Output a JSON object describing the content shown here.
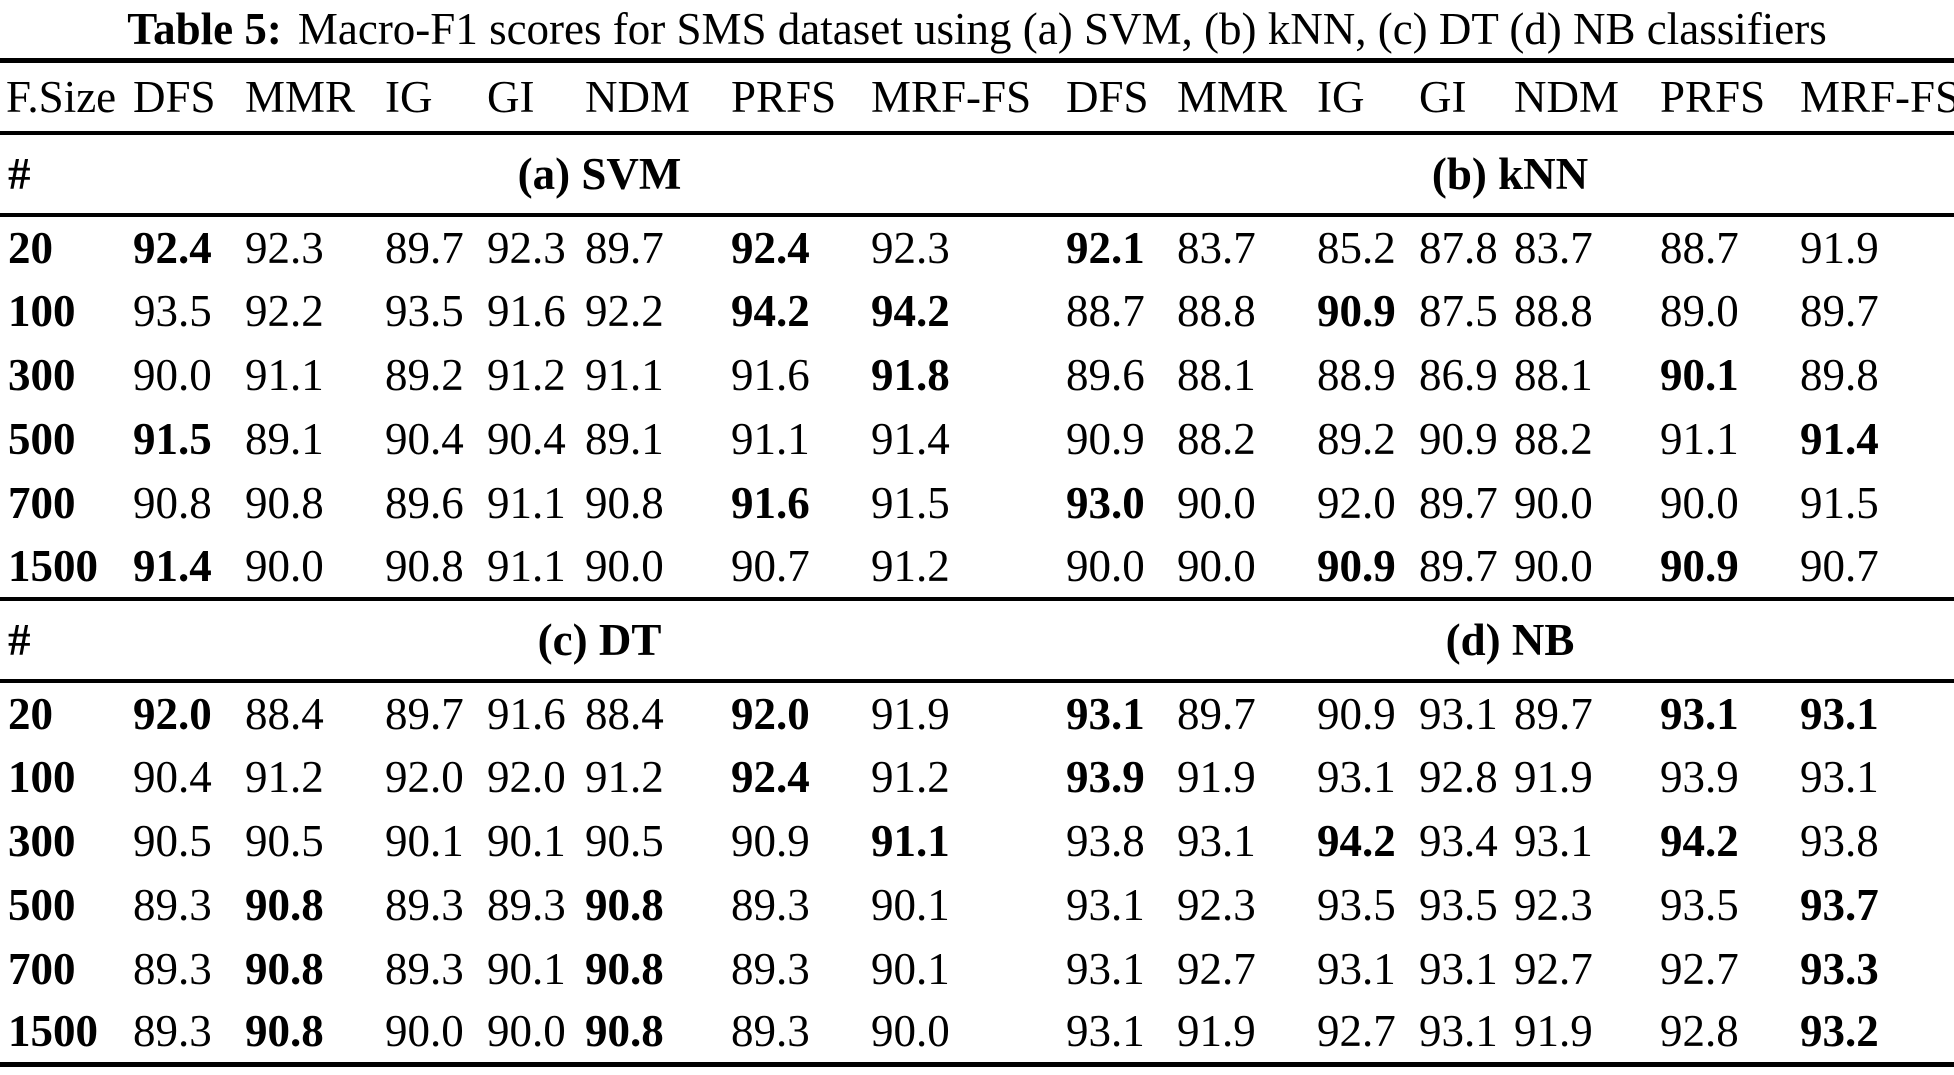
{
  "title": {
    "label": "Table 5:",
    "text": "Macro-F1 scores for SMS dataset using (a) SVM, (b) kNN, (c) DT (d) NB classifiers"
  },
  "table": {
    "size_header": "F.Size",
    "columns": [
      "DFS",
      "MMR",
      "IG",
      "GI",
      "NDM",
      "PRFS",
      "MRF-FS",
      "DFS",
      "MMR",
      "IG",
      "GI",
      "NDM",
      "PRFS",
      "MRF-FS"
    ],
    "sections": [
      {
        "hash": "#",
        "left_title": "(a) SVM",
        "right_title": "(b) kNN",
        "rows": [
          {
            "size": "20",
            "cells": [
              {
                "v": "92.4",
                "b": true
              },
              {
                "v": "92.3"
              },
              {
                "v": "89.7"
              },
              {
                "v": "92.3"
              },
              {
                "v": "89.7"
              },
              {
                "v": "92.4",
                "b": true
              },
              {
                "v": "92.3"
              },
              {
                "v": "92.1",
                "b": true
              },
              {
                "v": "83.7"
              },
              {
                "v": "85.2"
              },
              {
                "v": "87.8"
              },
              {
                "v": "83.7"
              },
              {
                "v": "88.7"
              },
              {
                "v": "91.9"
              }
            ]
          },
          {
            "size": "100",
            "cells": [
              {
                "v": "93.5"
              },
              {
                "v": "92.2"
              },
              {
                "v": "93.5"
              },
              {
                "v": "91.6"
              },
              {
                "v": "92.2"
              },
              {
                "v": "94.2",
                "b": true
              },
              {
                "v": "94.2",
                "b": true
              },
              {
                "v": "88.7"
              },
              {
                "v": "88.8"
              },
              {
                "v": "90.9",
                "b": true
              },
              {
                "v": "87.5"
              },
              {
                "v": "88.8"
              },
              {
                "v": "89.0"
              },
              {
                "v": "89.7"
              }
            ]
          },
          {
            "size": "300",
            "cells": [
              {
                "v": "90.0"
              },
              {
                "v": "91.1"
              },
              {
                "v": "89.2"
              },
              {
                "v": "91.2"
              },
              {
                "v": "91.1"
              },
              {
                "v": "91.6"
              },
              {
                "v": "91.8",
                "b": true
              },
              {
                "v": "89.6"
              },
              {
                "v": "88.1"
              },
              {
                "v": "88.9"
              },
              {
                "v": "86.9"
              },
              {
                "v": "88.1"
              },
              {
                "v": "90.1",
                "b": true
              },
              {
                "v": "89.8"
              }
            ]
          },
          {
            "size": "500",
            "cells": [
              {
                "v": "91.5",
                "b": true
              },
              {
                "v": "89.1"
              },
              {
                "v": "90.4"
              },
              {
                "v": "90.4"
              },
              {
                "v": "89.1"
              },
              {
                "v": "91.1"
              },
              {
                "v": "91.4"
              },
              {
                "v": "90.9"
              },
              {
                "v": "88.2"
              },
              {
                "v": "89.2"
              },
              {
                "v": "90.9"
              },
              {
                "v": "88.2"
              },
              {
                "v": "91.1"
              },
              {
                "v": "91.4",
                "b": true
              }
            ]
          },
          {
            "size": "700",
            "cells": [
              {
                "v": "90.8"
              },
              {
                "v": "90.8"
              },
              {
                "v": "89.6"
              },
              {
                "v": "91.1"
              },
              {
                "v": "90.8"
              },
              {
                "v": "91.6",
                "b": true
              },
              {
                "v": "91.5"
              },
              {
                "v": "93.0",
                "b": true
              },
              {
                "v": "90.0"
              },
              {
                "v": "92.0"
              },
              {
                "v": "89.7"
              },
              {
                "v": "90.0"
              },
              {
                "v": "90.0"
              },
              {
                "v": "91.5"
              }
            ]
          },
          {
            "size": "1500",
            "cells": [
              {
                "v": "91.4",
                "b": true
              },
              {
                "v": "90.0"
              },
              {
                "v": "90.8"
              },
              {
                "v": "91.1"
              },
              {
                "v": "90.0"
              },
              {
                "v": "90.7"
              },
              {
                "v": "91.2"
              },
              {
                "v": "90.0"
              },
              {
                "v": "90.0"
              },
              {
                "v": "90.9",
                "b": true
              },
              {
                "v": "89.7"
              },
              {
                "v": "90.0"
              },
              {
                "v": "90.9",
                "b": true
              },
              {
                "v": "90.7"
              }
            ]
          }
        ]
      },
      {
        "hash": "#",
        "left_title": "(c) DT",
        "right_title": "(d) NB",
        "rows": [
          {
            "size": "20",
            "cells": [
              {
                "v": "92.0",
                "b": true
              },
              {
                "v": "88.4"
              },
              {
                "v": "89.7"
              },
              {
                "v": "91.6"
              },
              {
                "v": "88.4"
              },
              {
                "v": "92.0",
                "b": true
              },
              {
                "v": "91.9"
              },
              {
                "v": "93.1",
                "b": true
              },
              {
                "v": "89.7"
              },
              {
                "v": "90.9"
              },
              {
                "v": "93.1"
              },
              {
                "v": "89.7"
              },
              {
                "v": "93.1",
                "b": true
              },
              {
                "v": "93.1",
                "b": true
              }
            ]
          },
          {
            "size": "100",
            "cells": [
              {
                "v": "90.4"
              },
              {
                "v": "91.2"
              },
              {
                "v": "92.0"
              },
              {
                "v": "92.0"
              },
              {
                "v": "91.2"
              },
              {
                "v": "92.4",
                "b": true
              },
              {
                "v": "91.2"
              },
              {
                "v": "93.9",
                "b": true
              },
              {
                "v": "91.9"
              },
              {
                "v": "93.1"
              },
              {
                "v": "92.8"
              },
              {
                "v": "91.9"
              },
              {
                "v": "93.9"
              },
              {
                "v": "93.1"
              }
            ]
          },
          {
            "size": "300",
            "cells": [
              {
                "v": "90.5"
              },
              {
                "v": "90.5"
              },
              {
                "v": "90.1"
              },
              {
                "v": "90.1"
              },
              {
                "v": "90.5"
              },
              {
                "v": "90.9"
              },
              {
                "v": "91.1",
                "b": true
              },
              {
                "v": "93.8"
              },
              {
                "v": "93.1"
              },
              {
                "v": "94.2",
                "b": true
              },
              {
                "v": "93.4"
              },
              {
                "v": "93.1"
              },
              {
                "v": "94.2",
                "b": true
              },
              {
                "v": "93.8"
              }
            ]
          },
          {
            "size": "500",
            "cells": [
              {
                "v": "89.3"
              },
              {
                "v": "90.8",
                "b": true
              },
              {
                "v": "89.3"
              },
              {
                "v": "89.3"
              },
              {
                "v": "90.8",
                "b": true
              },
              {
                "v": "89.3"
              },
              {
                "v": "90.1"
              },
              {
                "v": "93.1"
              },
              {
                "v": "92.3"
              },
              {
                "v": "93.5"
              },
              {
                "v": "93.5"
              },
              {
                "v": "92.3"
              },
              {
                "v": "93.5"
              },
              {
                "v": "93.7",
                "b": true
              }
            ]
          },
          {
            "size": "700",
            "cells": [
              {
                "v": "89.3"
              },
              {
                "v": "90.8",
                "b": true
              },
              {
                "v": "89.3"
              },
              {
                "v": "90.1"
              },
              {
                "v": "90.8",
                "b": true
              },
              {
                "v": "89.3"
              },
              {
                "v": "90.1"
              },
              {
                "v": "93.1"
              },
              {
                "v": "92.7"
              },
              {
                "v": "93.1"
              },
              {
                "v": "93.1"
              },
              {
                "v": "92.7"
              },
              {
                "v": "92.7"
              },
              {
                "v": "93.3",
                "b": true
              }
            ]
          },
          {
            "size": "1500",
            "cells": [
              {
                "v": "89.3"
              },
              {
                "v": "90.8",
                "b": true
              },
              {
                "v": "90.0"
              },
              {
                "v": "90.0"
              },
              {
                "v": "90.8",
                "b": true
              },
              {
                "v": "89.3"
              },
              {
                "v": "90.0"
              },
              {
                "v": "93.1"
              },
              {
                "v": "91.9"
              },
              {
                "v": "92.7"
              },
              {
                "v": "93.1"
              },
              {
                "v": "91.9"
              },
              {
                "v": "92.8"
              },
              {
                "v": "93.2",
                "b": true
              }
            ]
          }
        ]
      }
    ]
  }
}
